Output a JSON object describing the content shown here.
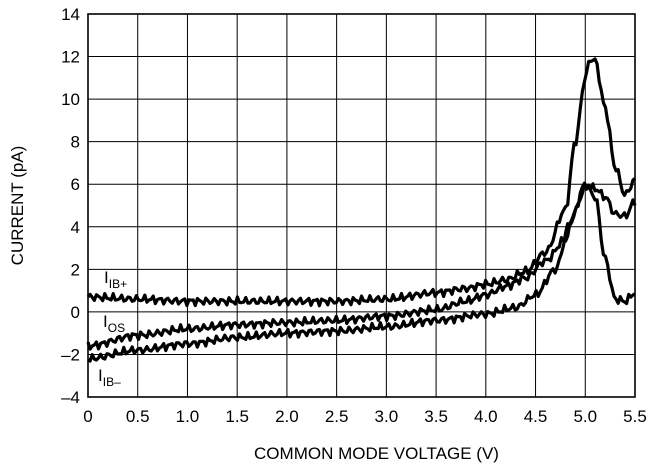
{
  "chart_data": {
    "type": "line",
    "title": "",
    "xlabel": "COMMON MODE VOLTAGE (V)",
    "ylabel": "CURRENT (pA)",
    "xlim": [
      0,
      5.5
    ],
    "ylim": [
      -4,
      14
    ],
    "x_ticks": [
      0,
      0.5,
      1.0,
      1.5,
      2.0,
      2.5,
      3.0,
      3.5,
      4.0,
      4.5,
      5.0,
      5.5
    ],
    "x_tick_labels": [
      "0",
      "0.5",
      "1.0",
      "1.5",
      "2.0",
      "2.5",
      "3.0",
      "3.5",
      "4.0",
      "4.5",
      "5.0",
      "5.5"
    ],
    "y_ticks": [
      -4,
      -2,
      0,
      2,
      4,
      6,
      8,
      10,
      12,
      14
    ],
    "y_tick_labels": [
      "–4",
      "–2",
      "0",
      "2",
      "4",
      "6",
      "8",
      "10",
      "12",
      "14"
    ],
    "grid": true,
    "series": [
      {
        "name": "I_IB+",
        "label_main": "I",
        "label_sub": "IB+",
        "x": [
          0,
          0.5,
          1.0,
          1.5,
          2.0,
          2.5,
          3.0,
          3.5,
          3.8,
          4.0,
          4.2,
          4.4,
          4.6,
          4.8,
          4.9,
          5.0,
          5.05,
          5.1,
          5.2,
          5.3,
          5.4,
          5.5
        ],
        "y": [
          0.7,
          0.6,
          0.5,
          0.5,
          0.5,
          0.5,
          0.6,
          0.9,
          1.1,
          1.3,
          1.5,
          1.9,
          2.8,
          4.8,
          8.0,
          11.0,
          11.9,
          11.8,
          9.6,
          6.8,
          5.5,
          6.2
        ]
      },
      {
        "name": "I_OS",
        "label_main": "I",
        "label_sub": "OS",
        "x": [
          0,
          0.5,
          1.0,
          1.5,
          2.0,
          2.5,
          3.0,
          3.5,
          3.8,
          4.0,
          4.2,
          4.4,
          4.6,
          4.8,
          4.9,
          5.0,
          5.1,
          5.2,
          5.3,
          5.4,
          5.5
        ],
        "y": [
          -1.6,
          -1.1,
          -0.8,
          -0.6,
          -0.5,
          -0.4,
          -0.2,
          0.1,
          0.5,
          0.8,
          1.2,
          1.6,
          2.4,
          3.4,
          4.8,
          5.9,
          5.8,
          5.4,
          4.6,
          4.5,
          5.2
        ]
      },
      {
        "name": "I_IB–",
        "label_main": "I",
        "label_sub": "IB–",
        "x": [
          0,
          0.5,
          1.0,
          1.5,
          2.0,
          2.5,
          3.0,
          3.5,
          4.0,
          4.3,
          4.5,
          4.7,
          4.85,
          5.0,
          5.1,
          5.2,
          5.3,
          5.4,
          5.5
        ],
        "y": [
          -2.2,
          -1.8,
          -1.5,
          -1.2,
          -1.0,
          -0.9,
          -0.7,
          -0.4,
          -0.1,
          0.2,
          0.8,
          2.0,
          4.2,
          6.0,
          5.4,
          2.5,
          0.6,
          0.5,
          0.9
        ]
      }
    ]
  }
}
